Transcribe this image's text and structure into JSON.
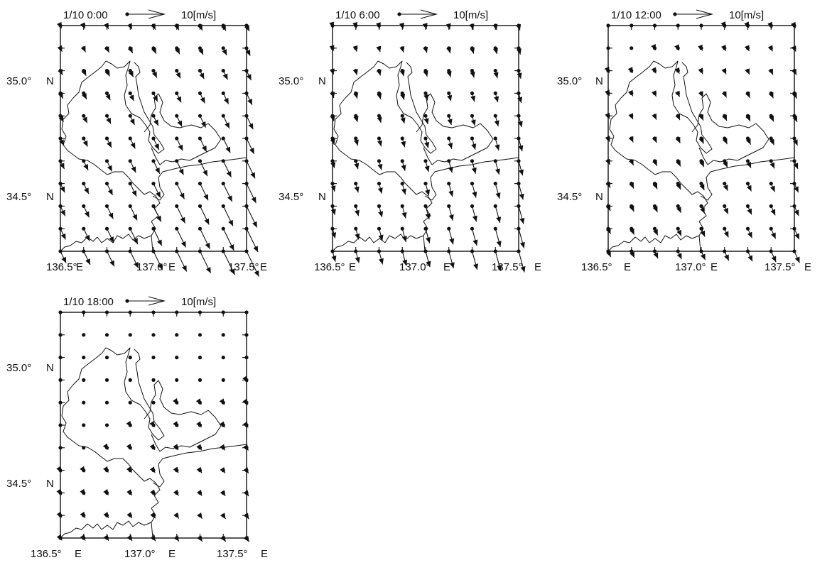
{
  "scale_arrow": {
    "label": "10[m/s]",
    "speed_ms": 10
  },
  "axes": {
    "lon_ticks": [
      {
        "value": 136.5,
        "label": "136.5°",
        "hemi": "E"
      },
      {
        "value": 137.0,
        "label": "137.0°",
        "hemi": "E"
      },
      {
        "value": 137.5,
        "label": "137.5°",
        "hemi": "E"
      }
    ],
    "lat_ticks": [
      {
        "value": 35.0,
        "label": "35.0°",
        "hemi": "N"
      },
      {
        "value": 34.5,
        "label": "34.5°",
        "hemi": "N"
      }
    ],
    "lon_range": [
      136.5,
      137.5
    ],
    "lat_range": [
      34.25,
      35.2
    ]
  },
  "panels": [
    {
      "time_label": "1/10 0:00",
      "wind": {
        "u": 2.2,
        "v": -4.5,
        "gust": 1.7
      }
    },
    {
      "time_label": "1/10 6:00",
      "wind": {
        "u": 1.1,
        "v": -4.0,
        "gust": 1.5
      }
    },
    {
      "time_label": "1/10 12:00",
      "wind": {
        "u": 1.0,
        "v": -2.2,
        "gust": 1.5
      }
    },
    {
      "time_label": "1/10 18:00",
      "wind": {
        "u": 0.6,
        "v": -0.9,
        "gust": 1.0
      }
    }
  ]
}
